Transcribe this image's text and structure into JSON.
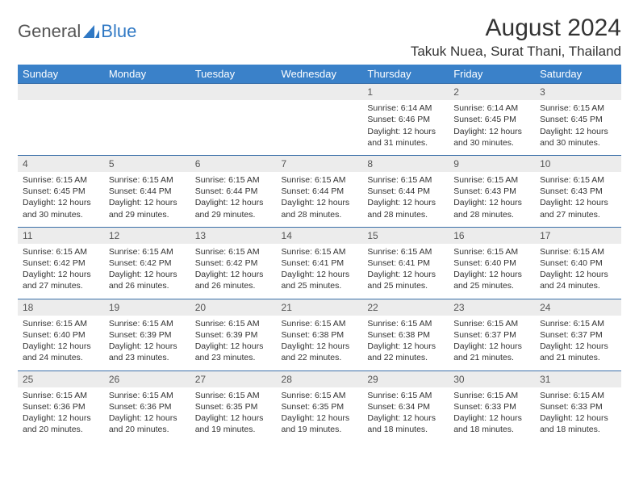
{
  "brand": {
    "part1": "General",
    "part2": "Blue",
    "accent": "#2f78c4"
  },
  "title": "August 2024",
  "location": "Takuk Nuea, Surat Thani, Thailand",
  "colors": {
    "header_bg": "#3a81c9",
    "header_text": "#ffffff",
    "daynum_bg": "#ececec",
    "border": "#3a6fa8",
    "text": "#333333"
  },
  "weekdays": [
    "Sunday",
    "Monday",
    "Tuesday",
    "Wednesday",
    "Thursday",
    "Friday",
    "Saturday"
  ],
  "weeks": [
    [
      null,
      null,
      null,
      null,
      {
        "n": "1",
        "sr": "6:14 AM",
        "ss": "6:46 PM",
        "dl": "12 hours and 31 minutes."
      },
      {
        "n": "2",
        "sr": "6:14 AM",
        "ss": "6:45 PM",
        "dl": "12 hours and 30 minutes."
      },
      {
        "n": "3",
        "sr": "6:15 AM",
        "ss": "6:45 PM",
        "dl": "12 hours and 30 minutes."
      }
    ],
    [
      {
        "n": "4",
        "sr": "6:15 AM",
        "ss": "6:45 PM",
        "dl": "12 hours and 30 minutes."
      },
      {
        "n": "5",
        "sr": "6:15 AM",
        "ss": "6:44 PM",
        "dl": "12 hours and 29 minutes."
      },
      {
        "n": "6",
        "sr": "6:15 AM",
        "ss": "6:44 PM",
        "dl": "12 hours and 29 minutes."
      },
      {
        "n": "7",
        "sr": "6:15 AM",
        "ss": "6:44 PM",
        "dl": "12 hours and 28 minutes."
      },
      {
        "n": "8",
        "sr": "6:15 AM",
        "ss": "6:44 PM",
        "dl": "12 hours and 28 minutes."
      },
      {
        "n": "9",
        "sr": "6:15 AM",
        "ss": "6:43 PM",
        "dl": "12 hours and 28 minutes."
      },
      {
        "n": "10",
        "sr": "6:15 AM",
        "ss": "6:43 PM",
        "dl": "12 hours and 27 minutes."
      }
    ],
    [
      {
        "n": "11",
        "sr": "6:15 AM",
        "ss": "6:42 PM",
        "dl": "12 hours and 27 minutes."
      },
      {
        "n": "12",
        "sr": "6:15 AM",
        "ss": "6:42 PM",
        "dl": "12 hours and 26 minutes."
      },
      {
        "n": "13",
        "sr": "6:15 AM",
        "ss": "6:42 PM",
        "dl": "12 hours and 26 minutes."
      },
      {
        "n": "14",
        "sr": "6:15 AM",
        "ss": "6:41 PM",
        "dl": "12 hours and 25 minutes."
      },
      {
        "n": "15",
        "sr": "6:15 AM",
        "ss": "6:41 PM",
        "dl": "12 hours and 25 minutes."
      },
      {
        "n": "16",
        "sr": "6:15 AM",
        "ss": "6:40 PM",
        "dl": "12 hours and 25 minutes."
      },
      {
        "n": "17",
        "sr": "6:15 AM",
        "ss": "6:40 PM",
        "dl": "12 hours and 24 minutes."
      }
    ],
    [
      {
        "n": "18",
        "sr": "6:15 AM",
        "ss": "6:40 PM",
        "dl": "12 hours and 24 minutes."
      },
      {
        "n": "19",
        "sr": "6:15 AM",
        "ss": "6:39 PM",
        "dl": "12 hours and 23 minutes."
      },
      {
        "n": "20",
        "sr": "6:15 AM",
        "ss": "6:39 PM",
        "dl": "12 hours and 23 minutes."
      },
      {
        "n": "21",
        "sr": "6:15 AM",
        "ss": "6:38 PM",
        "dl": "12 hours and 22 minutes."
      },
      {
        "n": "22",
        "sr": "6:15 AM",
        "ss": "6:38 PM",
        "dl": "12 hours and 22 minutes."
      },
      {
        "n": "23",
        "sr": "6:15 AM",
        "ss": "6:37 PM",
        "dl": "12 hours and 21 minutes."
      },
      {
        "n": "24",
        "sr": "6:15 AM",
        "ss": "6:37 PM",
        "dl": "12 hours and 21 minutes."
      }
    ],
    [
      {
        "n": "25",
        "sr": "6:15 AM",
        "ss": "6:36 PM",
        "dl": "12 hours and 20 minutes."
      },
      {
        "n": "26",
        "sr": "6:15 AM",
        "ss": "6:36 PM",
        "dl": "12 hours and 20 minutes."
      },
      {
        "n": "27",
        "sr": "6:15 AM",
        "ss": "6:35 PM",
        "dl": "12 hours and 19 minutes."
      },
      {
        "n": "28",
        "sr": "6:15 AM",
        "ss": "6:35 PM",
        "dl": "12 hours and 19 minutes."
      },
      {
        "n": "29",
        "sr": "6:15 AM",
        "ss": "6:34 PM",
        "dl": "12 hours and 18 minutes."
      },
      {
        "n": "30",
        "sr": "6:15 AM",
        "ss": "6:33 PM",
        "dl": "12 hours and 18 minutes."
      },
      {
        "n": "31",
        "sr": "6:15 AM",
        "ss": "6:33 PM",
        "dl": "12 hours and 18 minutes."
      }
    ]
  ],
  "labels": {
    "sunrise": "Sunrise:",
    "sunset": "Sunset:",
    "daylight": "Daylight:"
  }
}
